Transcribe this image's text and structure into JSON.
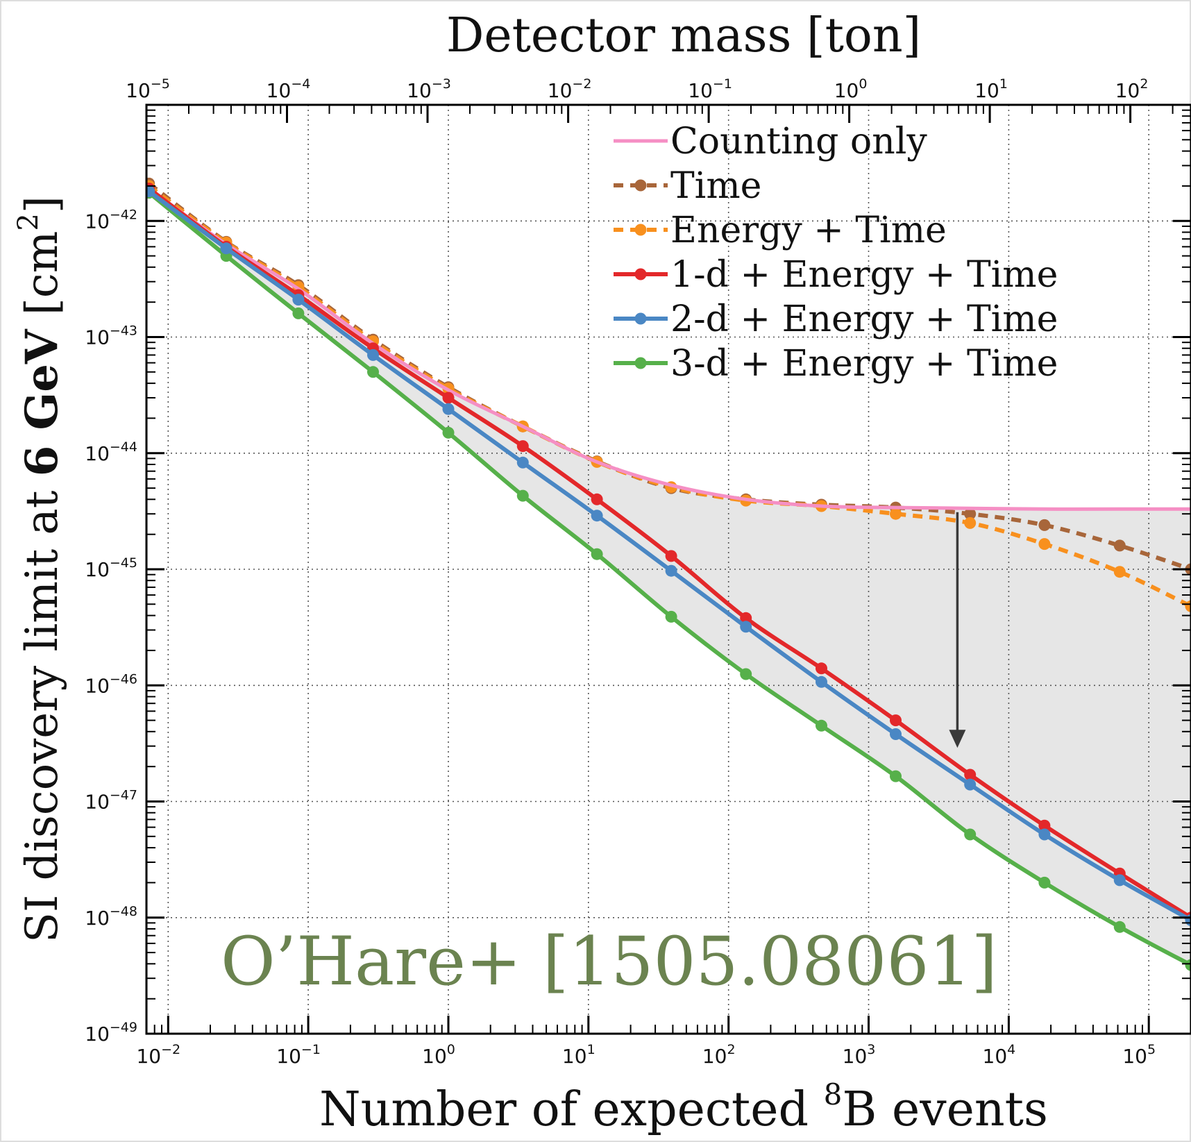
{
  "chart_data": {
    "type": "line",
    "title": "",
    "xlabel": "Number of expected ⁸B events",
    "xlabel_parts": {
      "pre": "Number of expected ",
      "sup": "8",
      "post": "B events"
    },
    "ylabel_parts": {
      "pre": "SI discovery limit at ",
      "bold": "6 GeV",
      "post": " [cm",
      "sup": "2",
      "end": "]"
    },
    "top_xlabel": "Detector mass [ton]",
    "xscale": "log",
    "yscale": "log",
    "xlim": [
      0.007,
      200000
    ],
    "ylim": [
      1e-49,
      1e-41
    ],
    "top_xlim": [
      1e-05,
      270
    ],
    "grid": true,
    "legend_position": "top-right",
    "x_ticks": [
      {
        "value": 0.01,
        "base": "10",
        "exp": "−2"
      },
      {
        "value": 0.1,
        "base": "10",
        "exp": "−1"
      },
      {
        "value": 1,
        "base": "10",
        "exp": "0"
      },
      {
        "value": 10,
        "base": "10",
        "exp": "1"
      },
      {
        "value": 100,
        "base": "10",
        "exp": "2"
      },
      {
        "value": 1000,
        "base": "10",
        "exp": "3"
      },
      {
        "value": 10000,
        "base": "10",
        "exp": "4"
      },
      {
        "value": 100000,
        "base": "10",
        "exp": "5"
      }
    ],
    "y_ticks": [
      {
        "value": 1e-42,
        "base": "10",
        "exp": "−42"
      },
      {
        "value": 1e-43,
        "base": "10",
        "exp": "−43"
      },
      {
        "value": 1e-44,
        "base": "10",
        "exp": "−44"
      },
      {
        "value": 1e-45,
        "base": "10",
        "exp": "−45"
      },
      {
        "value": 1e-46,
        "base": "10",
        "exp": "−46"
      },
      {
        "value": 1e-47,
        "base": "10",
        "exp": "−47"
      },
      {
        "value": 1e-48,
        "base": "10",
        "exp": "−48"
      },
      {
        "value": 1e-49,
        "base": "10",
        "exp": "−49"
      }
    ],
    "top_ticks": [
      {
        "value": 1e-05,
        "base": "10",
        "exp": "−5"
      },
      {
        "value": 0.0001,
        "base": "10",
        "exp": "−4"
      },
      {
        "value": 0.001,
        "base": "10",
        "exp": "−3"
      },
      {
        "value": 0.01,
        "base": "10",
        "exp": "−2"
      },
      {
        "value": 0.1,
        "base": "10",
        "exp": "−1"
      },
      {
        "value": 1,
        "base": "10",
        "exp": "0"
      },
      {
        "value": 10,
        "base": "10",
        "exp": "1"
      },
      {
        "value": 100,
        "base": "10",
        "exp": "2"
      }
    ],
    "x": [
      0.0073,
      0.026,
      0.085,
      0.29,
      1.0,
      3.4,
      11.5,
      39,
      133,
      460,
      1560,
      5300,
      18000,
      62000,
      200000
    ],
    "series": [
      {
        "name": "Counting only",
        "color": "#f58fc4",
        "style": "solid",
        "markers": false,
        "x": [
          0.0073,
          0.026,
          0.085,
          0.29,
          1.0,
          3.4,
          11.5,
          39,
          133,
          460,
          1560,
          5300,
          18000,
          62000,
          200000
        ],
        "values": [
          1.9e-42,
          6.3e-43,
          2.6e-43,
          8.8e-44,
          3.5e-44,
          1.7e-44,
          8.4e-45,
          5.3e-45,
          4e-45,
          3.5e-45,
          3.4e-45,
          3.35e-45,
          3.3e-45,
          3.3e-45,
          3.3e-45
        ]
      },
      {
        "name": "Time",
        "color": "#a8663a",
        "style": "dashed",
        "markers": true,
        "x": [
          0.0073,
          0.026,
          0.085,
          0.29,
          1.0,
          3.4,
          11.5,
          39,
          133,
          460,
          1560,
          5300,
          18000,
          62000,
          200000
        ],
        "values": [
          2.1e-42,
          6.6e-43,
          2.8e-43,
          9.5e-44,
          3.7e-44,
          1.7e-44,
          8.5e-45,
          5e-45,
          4e-45,
          3.6e-45,
          3.4e-45,
          3e-45,
          2.4e-45,
          1.6e-45,
          1e-45
        ]
      },
      {
        "name": "Energy + Time",
        "color": "#f8901e",
        "style": "dashed",
        "markers": true,
        "x": [
          0.0073,
          0.026,
          0.085,
          0.29,
          1.0,
          3.4,
          11.5,
          39,
          133,
          460,
          1560,
          5300,
          18000,
          62000,
          200000
        ],
        "values": [
          2e-42,
          6.5e-43,
          2.7e-43,
          9.2e-44,
          3.6e-44,
          1.7e-44,
          8.4e-45,
          5.1e-45,
          3.9e-45,
          3.5e-45,
          3e-45,
          2.5e-45,
          1.65e-45,
          9.5e-46,
          4.8e-46
        ]
      },
      {
        "name": "1-d + Energy + Time",
        "color": "#e3282a",
        "style": "solid",
        "markers": true,
        "x": [
          0.0073,
          0.026,
          0.085,
          0.29,
          1.0,
          3.4,
          11.5,
          39,
          133,
          460,
          1560,
          5300,
          18000,
          62000,
          200000
        ],
        "values": [
          1.9e-42,
          6e-43,
          2.3e-43,
          8e-44,
          3e-44,
          1.15e-44,
          4e-45,
          1.3e-45,
          3.8e-46,
          1.4e-46,
          5e-47,
          1.7e-47,
          6.2e-48,
          2.4e-48,
          1e-48
        ]
      },
      {
        "name": "2-d + Energy + Time",
        "color": "#4a87c4",
        "style": "solid",
        "markers": true,
        "x": [
          0.0073,
          0.026,
          0.085,
          0.29,
          1.0,
          3.4,
          11.5,
          39,
          133,
          460,
          1560,
          5300,
          18000,
          62000,
          200000
        ],
        "values": [
          1.8e-42,
          5.8e-43,
          2.1e-43,
          7e-44,
          2.4e-44,
          8.3e-45,
          2.9e-45,
          9.7e-46,
          3.2e-46,
          1.07e-46,
          3.8e-47,
          1.4e-47,
          5.2e-48,
          2.1e-48,
          9.5e-49
        ]
      },
      {
        "name": "3-d + Energy + Time",
        "color": "#56b04a",
        "style": "solid",
        "markers": true,
        "x": [
          0.0073,
          0.026,
          0.085,
          0.29,
          1.0,
          3.4,
          11.5,
          39,
          133,
          460,
          1560,
          5300,
          18000,
          62000,
          200000
        ],
        "values": [
          1.75e-42,
          5e-43,
          1.6e-43,
          5e-44,
          1.5e-44,
          4.3e-45,
          1.35e-45,
          3.9e-46,
          1.25e-46,
          4.5e-47,
          1.65e-47,
          5.2e-48,
          2e-48,
          8.3e-49,
          3.9e-49
        ]
      }
    ],
    "annotations": [
      {
        "text": "O’Hare+ [1505.08061]",
        "color": "#6b8350"
      }
    ],
    "shading": {
      "between": [
        "Counting only",
        "3-d + Energy + Time"
      ],
      "color": "#e6e6e6"
    },
    "arrow": {
      "x": 4300,
      "from": 3.1e-45,
      "to": 2.9e-47,
      "color": "#3a3a3a"
    }
  }
}
